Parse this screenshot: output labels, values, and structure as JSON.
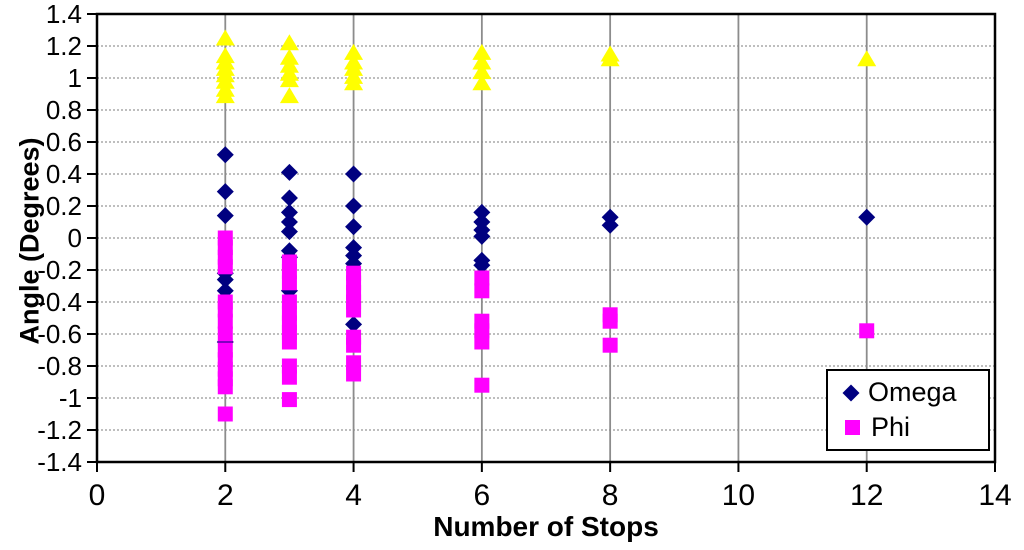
{
  "chart_data": {
    "type": "scatter",
    "title": "",
    "xlabel": "Number of Stops",
    "ylabel": "Angle (Degrees)",
    "xlim": [
      0,
      14
    ],
    "ylim": [
      -1.4,
      1.4
    ],
    "x_ticks": [
      0,
      2,
      4,
      6,
      8,
      10,
      12,
      14
    ],
    "x_tick_labels": [
      "0",
      "2",
      "4",
      "6",
      "8",
      "10",
      "12",
      "14"
    ],
    "y_ticks": [
      1.4,
      1.2,
      1.0,
      0.8,
      0.6,
      0.4,
      0.2,
      0,
      -0.2,
      -0.4,
      -0.6,
      -0.8,
      -1.0,
      -1.2,
      -1.4
    ],
    "y_tick_labels": [
      "1.4",
      "1.2",
      "1",
      "0.8",
      "0.6",
      "0.4",
      "0.2",
      "0",
      "-0.2",
      "-0.4",
      "-0.6",
      "-0.8",
      "-1",
      "-1.2",
      "-1.4"
    ],
    "grid": {
      "vertical_at": [
        2,
        4,
        6,
        8,
        10,
        12
      ],
      "horizontal_step": 0.2,
      "v_color": "#8c8c8c",
      "h_color": "#a8a8a8"
    },
    "axis_color": "#000000",
    "background": "#ffffff",
    "legend": {
      "position": "lower-right",
      "entries": [
        {
          "label": "Omega",
          "marker": "diamond",
          "color": "#000080"
        },
        {
          "label": "Phi",
          "marker": "square",
          "color": "#ff00ff"
        }
      ]
    },
    "series": [
      {
        "name": "Omega",
        "marker": "diamond",
        "color": "#000080",
        "in_legend": true,
        "points": [
          [
            2,
            0.52
          ],
          [
            2,
            0.29
          ],
          [
            2,
            0.14
          ],
          [
            2,
            -0.22
          ],
          [
            2,
            -0.26
          ],
          [
            2,
            -0.33
          ],
          [
            2,
            -0.65
          ],
          [
            3,
            0.41
          ],
          [
            3,
            0.25
          ],
          [
            3,
            0.16
          ],
          [
            3,
            0.1
          ],
          [
            3,
            0.04
          ],
          [
            3,
            -0.08
          ],
          [
            3,
            -0.12
          ],
          [
            3,
            -0.33
          ],
          [
            4,
            0.4
          ],
          [
            4,
            0.2
          ],
          [
            4,
            0.07
          ],
          [
            4,
            -0.06
          ],
          [
            4,
            -0.11
          ],
          [
            4,
            -0.16
          ],
          [
            4,
            -0.54
          ],
          [
            6,
            0.16
          ],
          [
            6,
            0.1
          ],
          [
            6,
            0.05
          ],
          [
            6,
            0.01
          ],
          [
            6,
            -0.14
          ],
          [
            6,
            -0.17
          ],
          [
            8,
            0.13
          ],
          [
            8,
            0.08
          ],
          [
            12,
            0.13
          ]
        ]
      },
      {
        "name": "Phi",
        "marker": "square",
        "color": "#ff00ff",
        "in_legend": true,
        "points": [
          [
            2,
            0.0
          ],
          [
            2,
            -0.06
          ],
          [
            2,
            -0.12
          ],
          [
            2,
            -0.18
          ],
          [
            2,
            -0.4
          ],
          [
            2,
            -0.45
          ],
          [
            2,
            -0.52
          ],
          [
            2,
            -0.6
          ],
          [
            2,
            -0.7
          ],
          [
            2,
            -0.76
          ],
          [
            2,
            -0.82
          ],
          [
            2,
            -0.88
          ],
          [
            2,
            -0.93
          ],
          [
            2,
            -1.1
          ],
          [
            3,
            -0.15
          ],
          [
            3,
            -0.21
          ],
          [
            3,
            -0.28
          ],
          [
            3,
            -0.4
          ],
          [
            3,
            -0.47
          ],
          [
            3,
            -0.53
          ],
          [
            3,
            -0.59
          ],
          [
            3,
            -0.65
          ],
          [
            3,
            -0.8
          ],
          [
            3,
            -0.87
          ],
          [
            3,
            -1.01
          ],
          [
            4,
            -0.22
          ],
          [
            4,
            -0.28
          ],
          [
            4,
            -0.34
          ],
          [
            4,
            -0.4
          ],
          [
            4,
            -0.45
          ],
          [
            4,
            -0.62
          ],
          [
            4,
            -0.67
          ],
          [
            4,
            -0.78
          ],
          [
            4,
            -0.85
          ],
          [
            6,
            -0.25
          ],
          [
            6,
            -0.33
          ],
          [
            6,
            -0.52
          ],
          [
            6,
            -0.58
          ],
          [
            6,
            -0.65
          ],
          [
            6,
            -0.92
          ],
          [
            8,
            -0.48
          ],
          [
            8,
            -0.52
          ],
          [
            8,
            -0.67
          ],
          [
            12,
            -0.58
          ]
        ]
      },
      {
        "name": "",
        "marker": "triangle",
        "color": "#ffff00",
        "in_legend": false,
        "points": [
          [
            2,
            1.25
          ],
          [
            2,
            1.14
          ],
          [
            2,
            1.1
          ],
          [
            2,
            1.06
          ],
          [
            2,
            1.02
          ],
          [
            2,
            0.98
          ],
          [
            2,
            0.93
          ],
          [
            2,
            0.89
          ],
          [
            3,
            1.22
          ],
          [
            3,
            1.13
          ],
          [
            3,
            1.08
          ],
          [
            3,
            1.03
          ],
          [
            3,
            0.99
          ],
          [
            3,
            0.89
          ],
          [
            4,
            1.16
          ],
          [
            4,
            1.1
          ],
          [
            4,
            1.06
          ],
          [
            4,
            1.01
          ],
          [
            4,
            0.97
          ],
          [
            6,
            1.16
          ],
          [
            6,
            1.1
          ],
          [
            6,
            1.04
          ],
          [
            6,
            0.97
          ],
          [
            8,
            1.15
          ],
          [
            8,
            1.12
          ],
          [
            12,
            1.12
          ]
        ]
      }
    ]
  }
}
